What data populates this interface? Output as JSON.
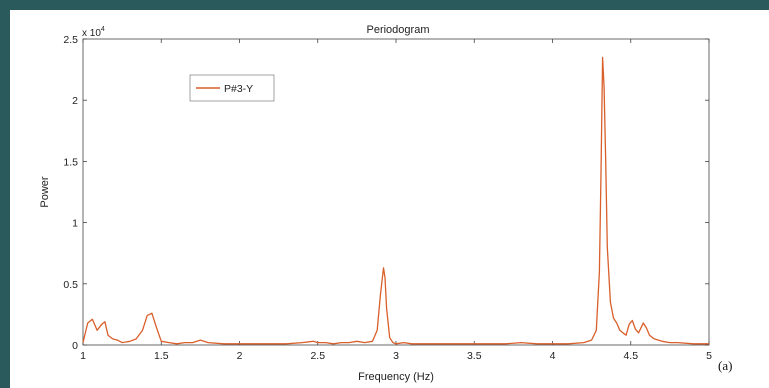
{
  "chart_data": {
    "type": "line",
    "title": "Periodogram",
    "xlabel": "Frequency (Hz)",
    "ylabel": "Power",
    "exponent_label": "x 10",
    "exponent_power": "4",
    "panel_label": "(a)",
    "xlim": [
      1,
      5
    ],
    "ylim": [
      0,
      2.5
    ],
    "xticks": [
      "1",
      "1.5",
      "2",
      "2.5",
      "3",
      "3.5",
      "4",
      "4.5",
      "5"
    ],
    "xtick_values": [
      1,
      1.5,
      2,
      2.5,
      3,
      3.5,
      4,
      4.5,
      5
    ],
    "yticks": [
      "0",
      "0.5",
      "1",
      "1.5",
      "2",
      "2.5"
    ],
    "ytick_values": [
      0,
      0.5,
      1,
      1.5,
      2,
      2.5
    ],
    "grid": false,
    "legend_position": "top-left",
    "series": [
      {
        "name": "P#3-Y",
        "color": "#d95f2b",
        "x": [
          1.0,
          1.03,
          1.06,
          1.09,
          1.12,
          1.14,
          1.16,
          1.19,
          1.22,
          1.25,
          1.3,
          1.34,
          1.38,
          1.41,
          1.44,
          1.47,
          1.5,
          1.55,
          1.6,
          1.65,
          1.7,
          1.75,
          1.8,
          1.9,
          2.0,
          2.1,
          2.2,
          2.3,
          2.4,
          2.47,
          2.5,
          2.55,
          2.6,
          2.65,
          2.7,
          2.75,
          2.8,
          2.85,
          2.88,
          2.9,
          2.92,
          2.93,
          2.94,
          2.96,
          2.98,
          3.0,
          3.05,
          3.1,
          3.2,
          3.3,
          3.4,
          3.5,
          3.6,
          3.7,
          3.8,
          3.9,
          4.0,
          4.1,
          4.2,
          4.25,
          4.28,
          4.3,
          4.31,
          4.32,
          4.33,
          4.34,
          4.35,
          4.37,
          4.39,
          4.41,
          4.43,
          4.45,
          4.47,
          4.49,
          4.51,
          4.53,
          4.55,
          4.58,
          4.6,
          4.62,
          4.65,
          4.7,
          4.75,
          4.8,
          4.9,
          5.0
        ],
        "y": [
          0.02,
          0.18,
          0.21,
          0.12,
          0.17,
          0.19,
          0.08,
          0.05,
          0.04,
          0.02,
          0.03,
          0.05,
          0.12,
          0.24,
          0.26,
          0.14,
          0.03,
          0.02,
          0.01,
          0.02,
          0.02,
          0.04,
          0.02,
          0.01,
          0.01,
          0.01,
          0.01,
          0.01,
          0.02,
          0.03,
          0.02,
          0.02,
          0.01,
          0.02,
          0.02,
          0.03,
          0.02,
          0.03,
          0.12,
          0.4,
          0.63,
          0.55,
          0.3,
          0.06,
          0.02,
          0.01,
          0.02,
          0.01,
          0.01,
          0.01,
          0.01,
          0.01,
          0.01,
          0.01,
          0.02,
          0.01,
          0.01,
          0.01,
          0.02,
          0.04,
          0.12,
          0.6,
          1.4,
          2.35,
          2.1,
          1.5,
          0.8,
          0.35,
          0.22,
          0.18,
          0.12,
          0.1,
          0.08,
          0.17,
          0.2,
          0.13,
          0.1,
          0.18,
          0.14,
          0.08,
          0.05,
          0.03,
          0.02,
          0.02,
          0.01,
          0.01
        ]
      }
    ]
  }
}
